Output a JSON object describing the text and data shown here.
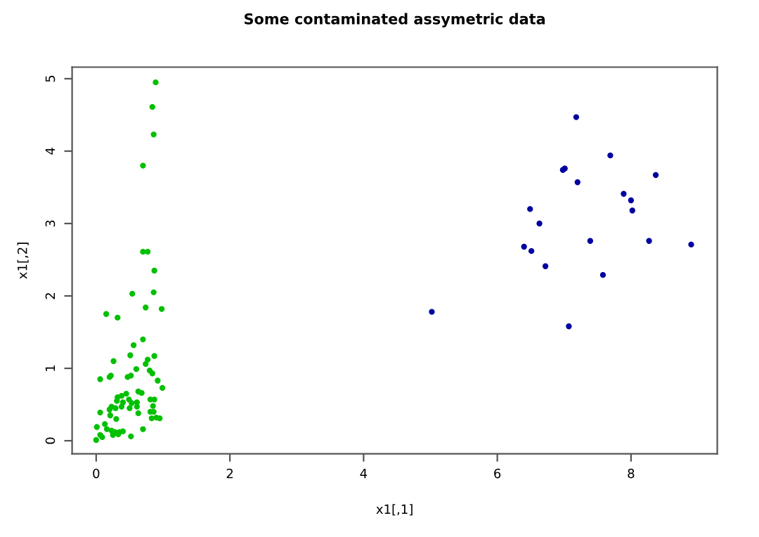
{
  "chart_data": {
    "type": "scatter",
    "title": "Some contaminated assymetric data",
    "xlabel": "x1[,1]",
    "ylabel": "x1[,2]",
    "xlim": [
      -0.36,
      9.29
    ],
    "ylim": [
      -0.18,
      5.16
    ],
    "xticks": [
      0,
      2,
      4,
      6,
      8
    ],
    "yticks": [
      0,
      1,
      2,
      3,
      4,
      5
    ],
    "grid": false,
    "marker": "circle",
    "series": [
      {
        "color": "#00c000",
        "x": [
          0.89,
          0.84,
          0.86,
          0.7,
          0.7,
          0.77,
          0.87,
          0.54,
          0.86,
          0.74,
          0.98,
          0.15,
          0.32,
          0.7,
          0.56,
          0.51,
          0.87,
          0.77,
          0.74,
          0.26,
          0.6,
          0.8,
          0.84,
          0.2,
          0.22,
          0.47,
          0.52,
          0.06,
          0.92,
          0.99,
          0.63,
          0.68,
          0.32,
          0.45,
          0.38,
          0.49,
          0.31,
          0.4,
          0.53,
          0.61,
          0.81,
          0.87,
          0.23,
          0.2,
          0.29,
          0.38,
          0.5,
          0.61,
          0.85,
          0.81,
          0.63,
          0.86,
          0.9,
          0.83,
          0.95,
          0.06,
          0.3,
          0.21,
          0.01,
          0.13,
          0.16,
          0.06,
          0.09,
          0.0,
          0.23,
          0.28,
          0.35,
          0.4,
          0.25,
          0.33,
          0.52,
          0.7
        ],
        "values": [
          4.95,
          4.61,
          4.23,
          3.8,
          2.61,
          2.61,
          2.35,
          2.03,
          2.05,
          1.84,
          1.82,
          1.75,
          1.7,
          1.4,
          1.32,
          1.18,
          1.17,
          1.12,
          1.06,
          1.1,
          0.99,
          0.97,
          0.93,
          0.88,
          0.9,
          0.88,
          0.9,
          0.85,
          0.83,
          0.73,
          0.68,
          0.66,
          0.6,
          0.65,
          0.62,
          0.57,
          0.55,
          0.53,
          0.52,
          0.53,
          0.57,
          0.57,
          0.47,
          0.43,
          0.45,
          0.47,
          0.45,
          0.47,
          0.48,
          0.4,
          0.38,
          0.4,
          0.32,
          0.31,
          0.31,
          0.39,
          0.3,
          0.35,
          0.19,
          0.23,
          0.16,
          0.08,
          0.05,
          0.01,
          0.14,
          0.12,
          0.12,
          0.13,
          0.08,
          0.09,
          0.06,
          0.16
        ]
      },
      {
        "color": "#0000a0",
        "x": [
          7.18,
          7.69,
          6.98,
          7.01,
          8.37,
          7.2,
          7.89,
          8.0,
          8.02,
          6.49,
          6.63,
          6.4,
          6.51,
          7.39,
          8.27,
          8.9,
          6.72,
          7.58,
          5.02,
          7.07
        ],
        "values": [
          4.47,
          3.94,
          3.74,
          3.76,
          3.67,
          3.57,
          3.41,
          3.32,
          3.18,
          3.2,
          3.0,
          2.68,
          2.62,
          2.76,
          2.76,
          2.71,
          2.41,
          2.29,
          1.78,
          1.58
        ]
      }
    ]
  }
}
